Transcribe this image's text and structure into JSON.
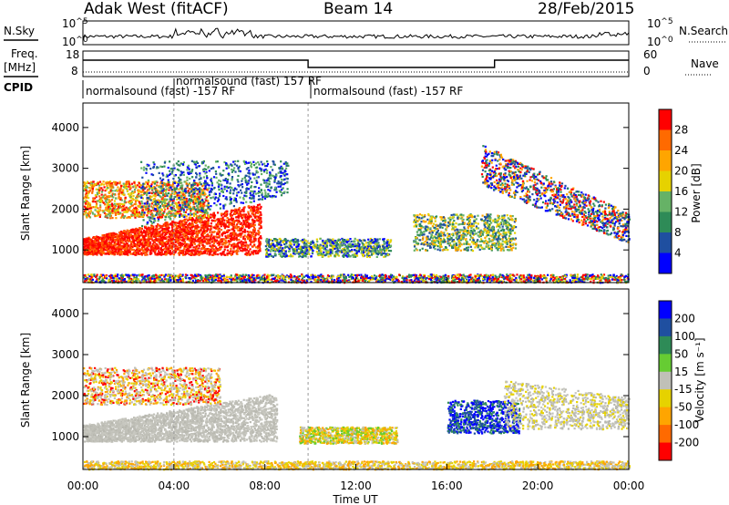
{
  "header": {
    "radar": "Adak West (fitACF)",
    "beam": "Beam 14",
    "date": "28/Feb/2015"
  },
  "panel_labels": {
    "nsky": "N.Sky",
    "nsearch": "N.Search",
    "freq": "Freq.",
    "freq_unit": "[MHz]",
    "cpid": "CPID",
    "nave": "Nave"
  },
  "mode_labels": [
    "normalsound (fast) -157 RF",
    "normalsound (fast) 157 RF",
    "normalsound (fast) -157 RF"
  ],
  "colors": {
    "power_scale": [
      "#0000ff",
      "#1f4fa0",
      "#2e8b57",
      "#66b266",
      "#e6d200",
      "#ffa500",
      "#ff6a00",
      "#ff0000"
    ],
    "velocity_scale": [
      "#ff0000",
      "#ff6a00",
      "#ffa500",
      "#e6d200",
      "#c0c0b8",
      "#66cc33",
      "#2e8b57",
      "#1f4fa0",
      "#0000ff"
    ]
  },
  "chart_data": [
    {
      "type": "line",
      "name": "nsky-nsearch",
      "x": [
        "00:00",
        "04:00",
        "08:00",
        "12:00",
        "16:00",
        "20:00",
        "00:00"
      ],
      "left_ticks": [
        "10^5",
        "10^0"
      ],
      "right_ticks": [
        "10^5",
        "10^0"
      ]
    },
    {
      "type": "line",
      "name": "frequency-nave",
      "left_ticks": [
        "18",
        "8"
      ],
      "right_ticks": [
        "60",
        "0"
      ],
      "freq_segments": [
        {
          "start_hour": 0,
          "end_hour": 9.9,
          "value": "high"
        },
        {
          "start_hour": 9.9,
          "end_hour": 18.1,
          "value": "low"
        },
        {
          "start_hour": 18.1,
          "end_hour": 24,
          "value": "high"
        }
      ],
      "mode_changes_hour": [
        4.0,
        9.9
      ]
    },
    {
      "type": "heatmap",
      "name": "power",
      "ylabel": "Slant Range [km]",
      "yticks": [
        1000,
        2000,
        3000,
        4000
      ],
      "ylim": [
        200,
        4600
      ],
      "xlim": [
        0,
        24
      ],
      "colorbar_label": "Power [dB]",
      "colorbar_ticks": [
        4,
        8,
        12,
        16,
        20,
        24,
        28
      ]
    },
    {
      "type": "heatmap",
      "name": "velocity",
      "ylabel": "Slant Range [km]",
      "yticks": [
        1000,
        2000,
        3000,
        4000
      ],
      "ylim": [
        200,
        4600
      ],
      "xlim": [
        0,
        24
      ],
      "xlabel": "Time UT",
      "xticks": [
        "00:00",
        "04:00",
        "08:00",
        "12:00",
        "16:00",
        "20:00",
        "00:00"
      ],
      "colorbar_label": "Velocity [m s⁻¹]",
      "colorbar_ticks": [
        200,
        100,
        50,
        15,
        -15,
        -50,
        -100,
        -200
      ]
    }
  ]
}
